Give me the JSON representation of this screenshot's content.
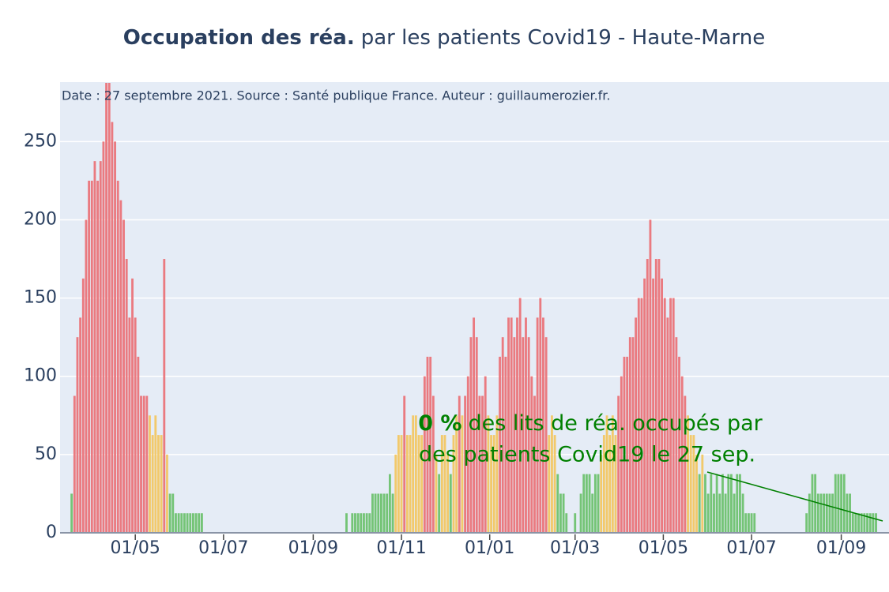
{
  "chart_data": {
    "type": "bar",
    "title_bold": "Occupation des réa.",
    "title": "par les patients Covid19 - Haute-Marne",
    "note": "Date : 27 septembre 2021. Source : Santé publique France. Auteur : guillaumerozier.fr.",
    "annotation": {
      "value_text": "0 %",
      "lines": [
        "des lits de réa. occupés par",
        "des patients Covid19 le 27 sep."
      ],
      "color": "#008000"
    },
    "x": [
      "2020-03-18",
      "2020-03-20",
      "2020-03-22",
      "2020-03-24",
      "2020-03-26",
      "2020-03-28",
      "2020-03-30",
      "2020-04-01",
      "2020-04-03",
      "2020-04-05",
      "2020-04-07",
      "2020-04-09",
      "2020-04-11",
      "2020-04-13",
      "2020-04-15",
      "2020-04-17",
      "2020-04-19",
      "2020-04-21",
      "2020-04-23",
      "2020-04-25",
      "2020-04-27",
      "2020-04-29",
      "2020-05-01",
      "2020-05-03",
      "2020-05-05",
      "2020-05-07",
      "2020-05-09",
      "2020-05-11",
      "2020-05-13",
      "2020-05-15",
      "2020-05-17",
      "2020-05-19",
      "2020-05-21",
      "2020-05-23",
      "2020-05-25",
      "2020-05-27",
      "2020-05-29",
      "2020-05-31",
      "2020-06-02",
      "2020-06-04",
      "2020-06-06",
      "2020-06-08",
      "2020-06-10",
      "2020-06-12",
      "2020-06-14",
      "2020-06-16",
      "2020-06-18",
      "2020-06-20",
      "2020-06-22",
      "2020-06-24",
      "2020-06-26",
      "2020-06-28",
      "2020-06-30",
      "2020-07-02",
      "2020-07-04",
      "2020-07-06",
      "2020-07-08",
      "2020-07-10",
      "2020-07-12",
      "2020-07-14",
      "2020-07-16",
      "2020-07-18",
      "2020-07-20",
      "2020-07-22",
      "2020-07-24",
      "2020-07-26",
      "2020-07-28",
      "2020-07-30",
      "2020-08-01",
      "2020-08-03",
      "2020-08-05",
      "2020-08-07",
      "2020-08-09",
      "2020-08-11",
      "2020-08-13",
      "2020-08-15",
      "2020-08-17",
      "2020-08-19",
      "2020-08-21",
      "2020-08-23",
      "2020-08-25",
      "2020-08-27",
      "2020-08-29",
      "2020-08-31",
      "2020-09-02",
      "2020-09-04",
      "2020-09-06",
      "2020-09-08",
      "2020-09-10",
      "2020-09-12",
      "2020-09-14",
      "2020-09-16",
      "2020-09-18",
      "2020-09-20",
      "2020-09-22",
      "2020-09-24",
      "2020-09-26",
      "2020-09-28",
      "2020-09-30",
      "2020-10-02",
      "2020-10-04",
      "2020-10-06",
      "2020-10-08",
      "2020-10-10",
      "2020-10-12",
      "2020-10-14",
      "2020-10-16",
      "2020-10-18",
      "2020-10-20",
      "2020-10-22",
      "2020-10-24",
      "2020-10-26",
      "2020-10-28",
      "2020-10-30",
      "2020-11-01",
      "2020-11-03",
      "2020-11-05",
      "2020-11-07",
      "2020-11-09",
      "2020-11-11",
      "2020-11-13",
      "2020-11-15",
      "2020-11-17",
      "2020-11-19",
      "2020-11-21",
      "2020-11-23",
      "2020-11-25",
      "2020-11-27",
      "2020-11-29",
      "2020-12-01",
      "2020-12-03",
      "2020-12-05",
      "2020-12-07",
      "2020-12-09",
      "2020-12-11",
      "2020-12-13",
      "2020-12-15",
      "2020-12-17",
      "2020-12-19",
      "2020-12-21",
      "2020-12-23",
      "2020-12-25",
      "2020-12-27",
      "2020-12-29",
      "2020-12-31",
      "2021-01-02",
      "2021-01-04",
      "2021-01-06",
      "2021-01-08",
      "2021-01-10",
      "2021-01-12",
      "2021-01-14",
      "2021-01-16",
      "2021-01-18",
      "2021-01-20",
      "2021-01-22",
      "2021-01-24",
      "2021-01-26",
      "2021-01-28",
      "2021-01-30",
      "2021-02-01",
      "2021-02-03",
      "2021-02-05",
      "2021-02-07",
      "2021-02-09",
      "2021-02-11",
      "2021-02-13",
      "2021-02-15",
      "2021-02-17",
      "2021-02-19",
      "2021-02-21",
      "2021-02-23",
      "2021-02-25",
      "2021-02-27",
      "2021-03-01",
      "2021-03-03",
      "2021-03-05",
      "2021-03-07",
      "2021-03-09",
      "2021-03-11",
      "2021-03-13",
      "2021-03-15",
      "2021-03-17",
      "2021-03-19",
      "2021-03-21",
      "2021-03-23",
      "2021-03-25",
      "2021-03-27",
      "2021-03-29",
      "2021-03-31",
      "2021-04-02",
      "2021-04-04",
      "2021-04-06",
      "2021-04-08",
      "2021-04-10",
      "2021-04-12",
      "2021-04-14",
      "2021-04-16",
      "2021-04-18",
      "2021-04-20",
      "2021-04-22",
      "2021-04-24",
      "2021-04-26",
      "2021-04-28",
      "2021-04-30",
      "2021-05-02",
      "2021-05-04",
      "2021-05-06",
      "2021-05-08",
      "2021-05-10",
      "2021-05-12",
      "2021-05-14",
      "2021-05-16",
      "2021-05-18",
      "2021-05-20",
      "2021-05-22",
      "2021-05-24",
      "2021-05-26",
      "2021-05-28",
      "2021-05-30",
      "2021-06-01",
      "2021-06-03",
      "2021-06-05",
      "2021-06-07",
      "2021-06-09",
      "2021-06-11",
      "2021-06-13",
      "2021-06-15",
      "2021-06-17",
      "2021-06-19",
      "2021-06-21",
      "2021-06-23",
      "2021-06-25",
      "2021-06-27",
      "2021-06-29",
      "2021-07-01",
      "2021-07-03",
      "2021-07-05",
      "2021-07-07",
      "2021-07-09",
      "2021-07-11",
      "2021-07-13",
      "2021-07-15",
      "2021-07-17",
      "2021-07-19",
      "2021-07-21",
      "2021-07-23",
      "2021-07-25",
      "2021-07-27",
      "2021-07-29",
      "2021-07-31",
      "2021-08-02",
      "2021-08-04",
      "2021-08-06",
      "2021-08-08",
      "2021-08-10",
      "2021-08-12",
      "2021-08-14",
      "2021-08-16",
      "2021-08-18",
      "2021-08-20",
      "2021-08-22",
      "2021-08-24",
      "2021-08-26",
      "2021-08-28",
      "2021-08-30",
      "2021-09-01",
      "2021-09-03",
      "2021-09-05",
      "2021-09-07",
      "2021-09-09",
      "2021-09-11",
      "2021-09-13",
      "2021-09-15",
      "2021-09-17",
      "2021-09-19",
      "2021-09-21",
      "2021-09-23",
      "2021-09-25",
      "2021-09-27"
    ],
    "values": [
      25,
      87.5,
      125,
      137.5,
      162.5,
      200,
      225,
      225,
      237.5,
      225,
      237.5,
      250,
      287.5,
      287.5,
      262.5,
      250,
      225,
      212.5,
      200,
      175,
      137.5,
      162.5,
      137.5,
      112.5,
      87.5,
      87.5,
      87.5,
      75,
      62.5,
      75,
      62.5,
      62.5,
      175,
      50,
      25,
      25,
      12.5,
      12.5,
      12.5,
      12.5,
      12.5,
      12.5,
      12.5,
      12.5,
      12.5,
      12.5,
      0,
      0,
      0,
      0,
      0,
      0,
      0,
      0,
      0,
      0,
      0,
      0,
      0,
      0,
      0,
      0,
      0,
      0,
      0,
      0,
      0,
      0,
      0,
      0,
      0,
      0,
      0,
      0,
      0,
      0,
      0,
      0,
      0,
      0,
      0,
      0,
      0,
      0,
      0,
      0,
      0,
      0,
      0,
      0,
      0,
      0,
      0,
      0,
      0,
      12.5,
      0,
      12.5,
      12.5,
      12.5,
      12.5,
      12.5,
      12.5,
      12.5,
      25,
      25,
      25,
      25,
      25,
      25,
      37.5,
      25,
      50,
      62.5,
      62.5,
      87.5,
      62.5,
      62.5,
      75,
      75,
      62.5,
      62.5,
      100,
      112.5,
      112.5,
      87.5,
      50,
      37.5,
      62.5,
      62.5,
      50,
      37.5,
      62.5,
      75,
      87.5,
      75,
      87.5,
      100,
      125,
      137.5,
      125,
      87.5,
      87.5,
      100,
      75,
      62.5,
      62.5,
      75,
      112.5,
      125,
      112.5,
      137.5,
      137.5,
      125,
      137.5,
      150,
      125,
      137.5,
      125,
      100,
      87.5,
      137.5,
      150,
      137.5,
      125,
      62.5,
      75,
      62.5,
      37.5,
      25,
      25,
      12.5,
      0,
      0,
      12.5,
      0,
      25,
      37.5,
      37.5,
      37.5,
      25,
      37.5,
      37.5,
      50,
      62.5,
      75,
      62.5,
      75,
      62.5,
      87.5,
      100,
      112.5,
      112.5,
      125,
      125,
      137.5,
      150,
      150,
      162.5,
      175,
      200,
      162.5,
      175,
      175,
      162.5,
      150,
      137.5,
      150,
      150,
      125,
      112.5,
      100,
      87.5,
      75,
      62.5,
      62.5,
      50,
      37.5,
      50,
      37.5,
      25,
      37.5,
      25,
      37.5,
      25,
      37.5,
      25,
      37.5,
      37.5,
      25,
      37.5,
      37.5,
      25,
      12.5,
      12.5,
      12.5,
      12.5,
      0,
      0,
      0,
      0,
      0,
      0,
      0,
      0,
      0,
      0,
      0,
      0,
      0,
      0,
      0,
      0,
      0,
      12.5,
      25,
      37.5,
      37.5,
      25,
      25,
      25,
      25,
      25,
      25,
      37.5,
      37.5,
      37.5,
      37.5,
      25,
      25,
      12.5,
      12.5,
      12.5,
      12.5,
      12.5,
      12.5,
      12.5,
      12.5,
      12.5,
      0
    ],
    "color_thresholds": [
      {
        "below": 40,
        "color": "#74c476"
      },
      {
        "below": 80,
        "color": "#f2c96b"
      },
      {
        "color": "#ea7a80"
      }
    ],
    "xlim": [
      "2020-03-10",
      "2021-10-04"
    ],
    "xticks": [
      {
        "value": "2020-05-01",
        "label": "01/05"
      },
      {
        "value": "2020-07-01",
        "label": "01/07"
      },
      {
        "value": "2020-09-01",
        "label": "01/09"
      },
      {
        "value": "2020-11-01",
        "label": "01/11"
      },
      {
        "value": "2021-01-01",
        "label": "01/01"
      },
      {
        "value": "2021-03-01",
        "label": "01/03"
      },
      {
        "value": "2021-05-01",
        "label": "01/05"
      },
      {
        "value": "2021-07-01",
        "label": "01/07"
      },
      {
        "value": "2021-09-01",
        "label": "01/09"
      }
    ],
    "ylim": [
      0,
      288
    ],
    "yticks": [
      0,
      50,
      100,
      150,
      200,
      250
    ],
    "grid": true
  }
}
